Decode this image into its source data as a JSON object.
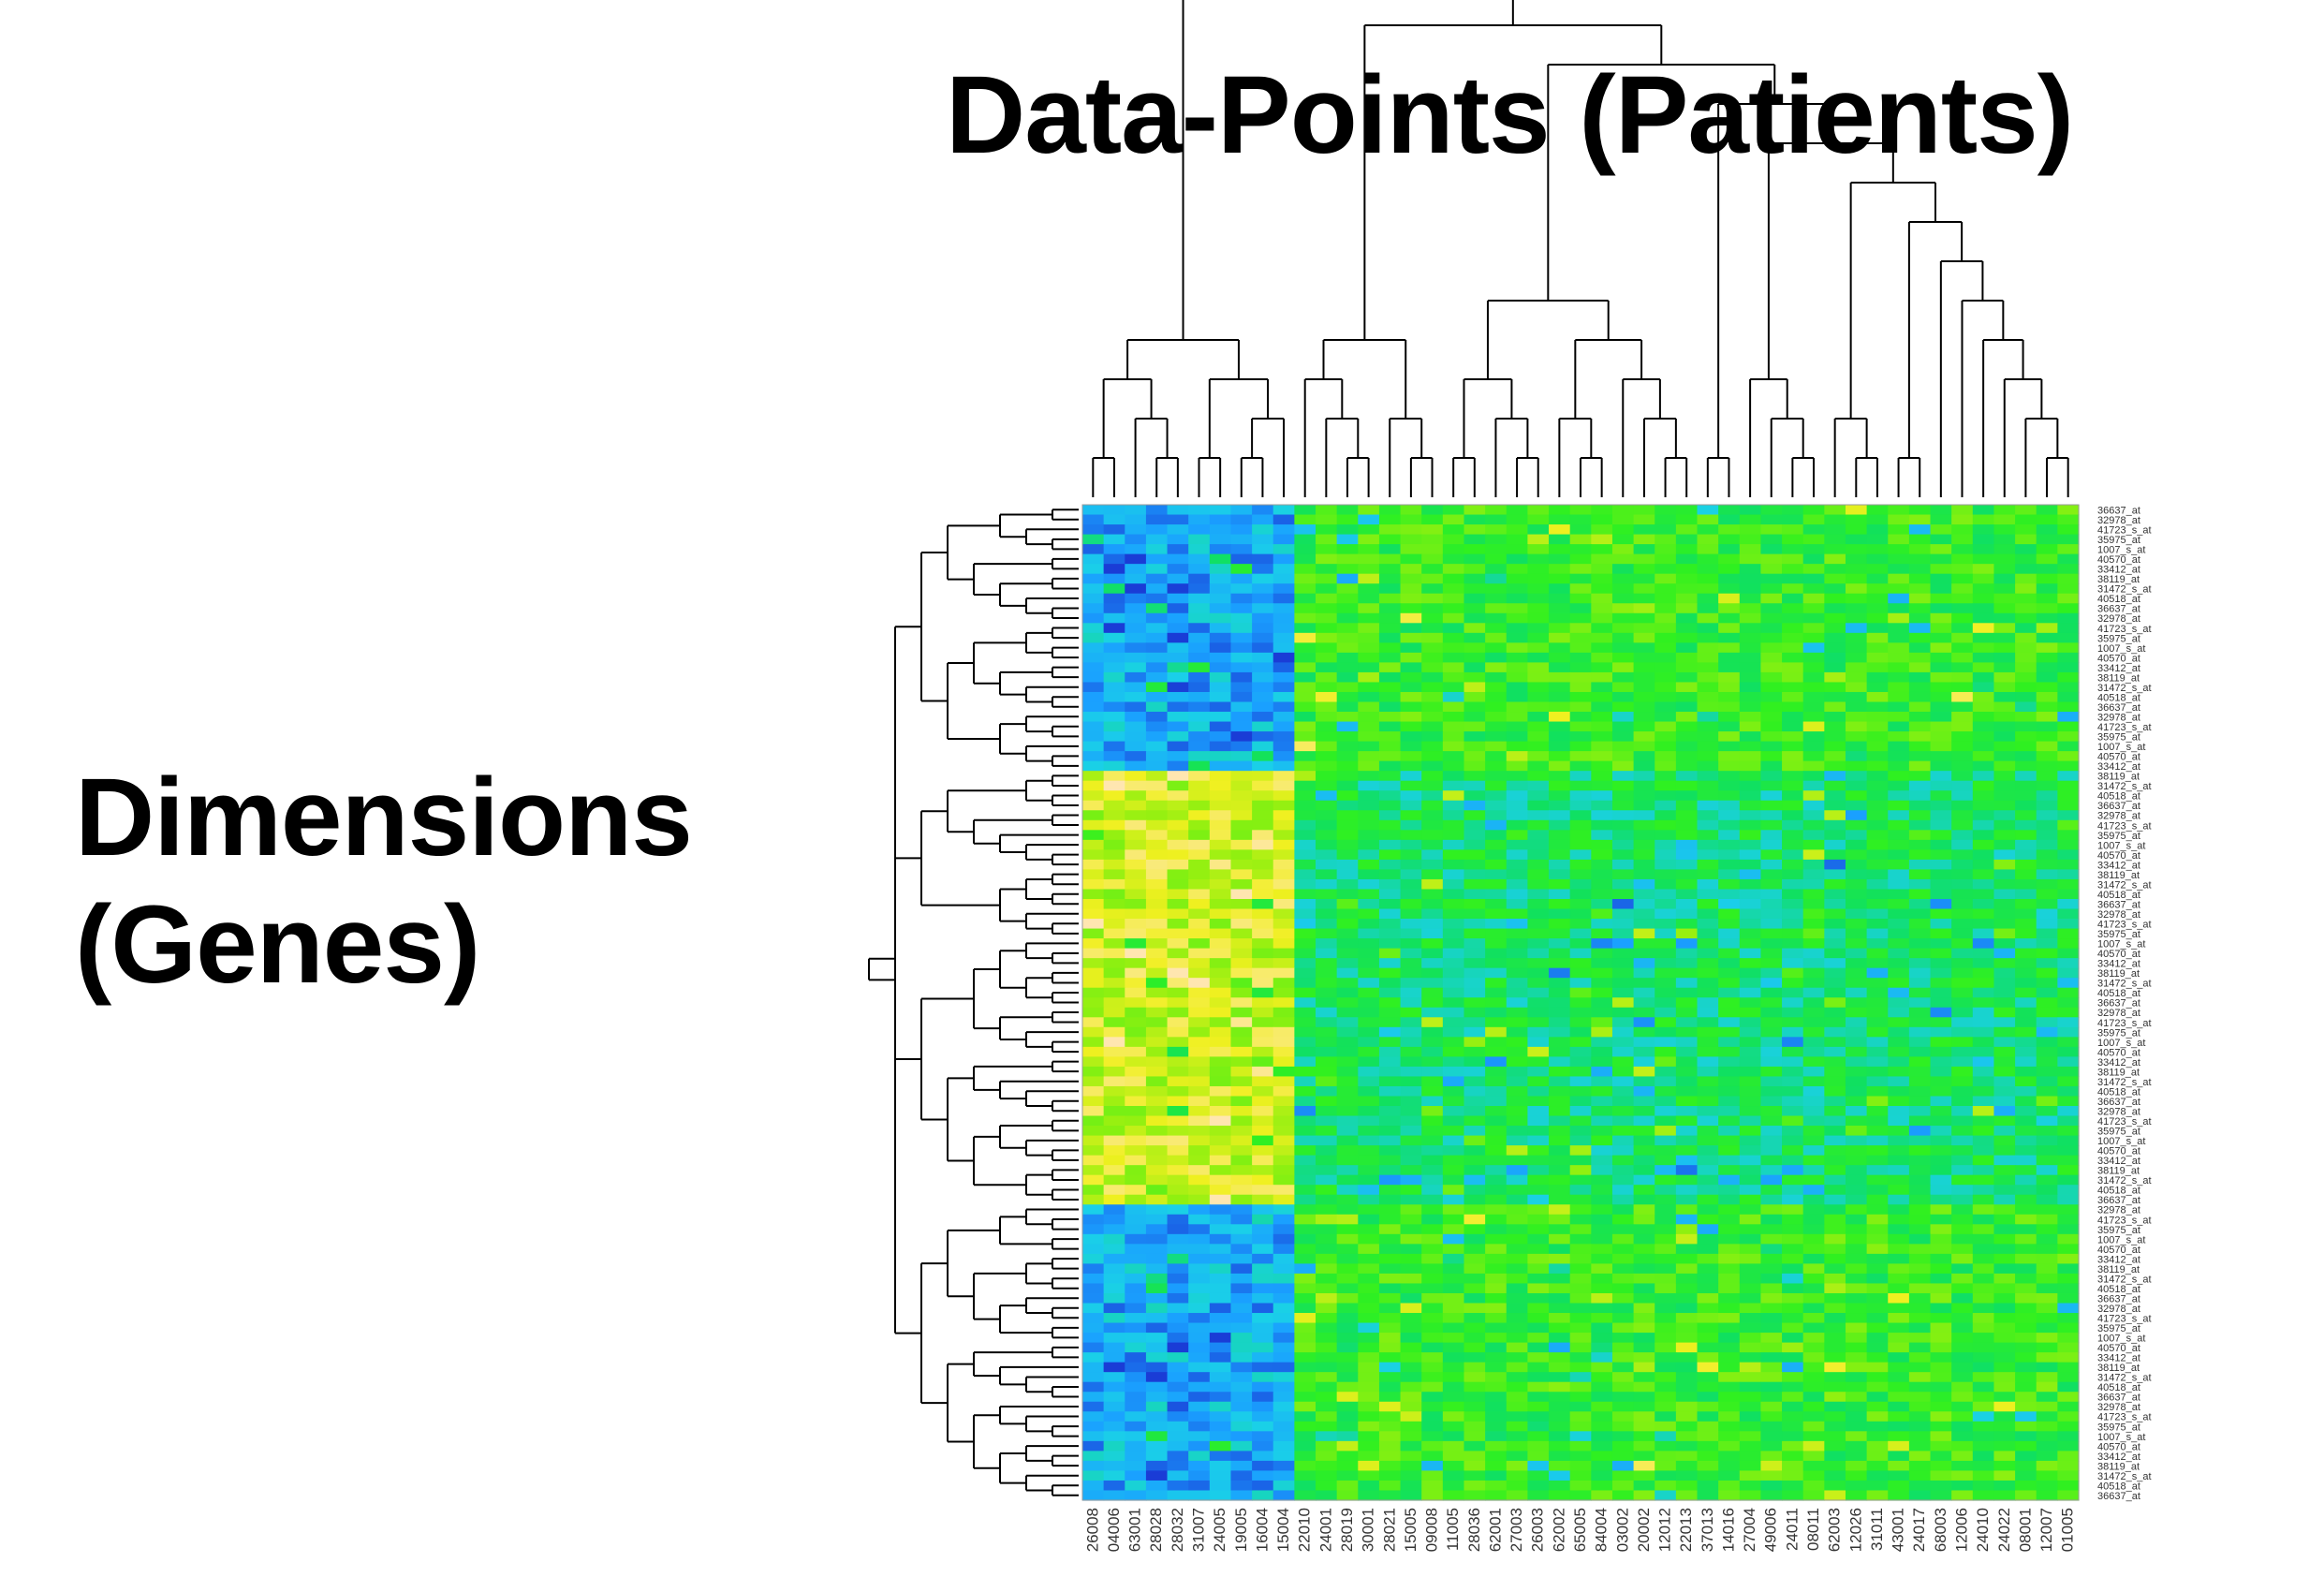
{
  "chart_data": {
    "type": "heatmap",
    "title": "Data-Points (Patients)",
    "ylabel_lines": [
      "Dimensions",
      "(Genes)"
    ],
    "column_labels": [
      "26008",
      "04006",
      "63001",
      "28028",
      "28032",
      "31007",
      "24005",
      "19005",
      "16004",
      "15004",
      "22010",
      "24001",
      "28019",
      "30001",
      "28021",
      "15005",
      "09008",
      "11005",
      "28036",
      "62001",
      "27003",
      "26003",
      "62002",
      "65005",
      "84004",
      "03002",
      "20002",
      "12012",
      "22013",
      "37013",
      "14016",
      "27004",
      "49006",
      "24011",
      "08011",
      "62003",
      "12026",
      "31011",
      "43001",
      "24017",
      "68003",
      "12006",
      "24010",
      "24022",
      "08001",
      "12007",
      "01005"
    ],
    "row_label_sample": [
      "36637_at",
      "32978_at",
      "41723_s_at",
      "35975_at",
      "1007_s_at",
      "40570_at",
      "33412_at",
      "38119_at",
      "31472_s_at",
      "40518_at"
    ],
    "row_count": 101,
    "colorscale": [
      "#1a3cd6",
      "#1aa0ff",
      "#1ad0e8",
      "#10e060",
      "#30f020",
      "#90f010",
      "#f0f020",
      "#ffe6b0"
    ],
    "row_dendrogram": true,
    "column_dendrogram": true
  }
}
